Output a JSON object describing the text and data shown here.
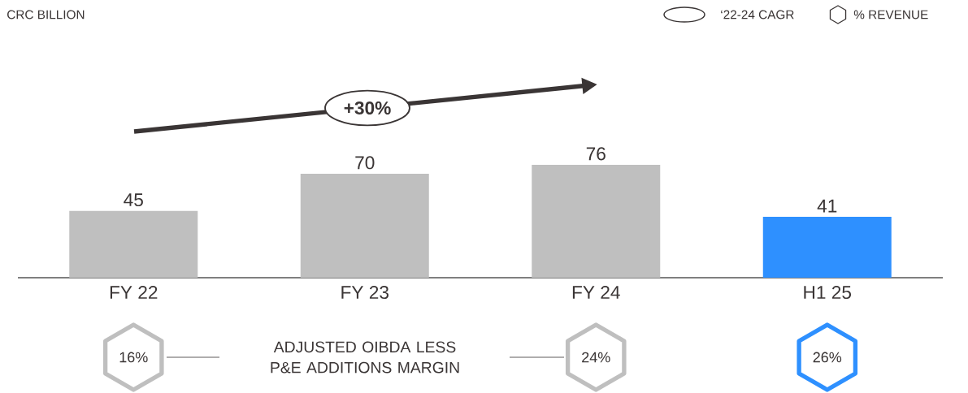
{
  "chart_data": {
    "type": "bar",
    "categories": [
      "FY 22",
      "FY 23",
      "FY 24",
      "H1 25"
    ],
    "values": [
      45,
      70,
      76,
      41
    ],
    "colors": [
      "#bfbfbf",
      "#bfbfbf",
      "#bfbfbf",
      "#2e90ff"
    ],
    "data_labels": true,
    "annotations": [
      "CRC BILLION",
      {
        "text": "‘22-24 CAGR"
      },
      {
        "text": "% REVENUE"
      },
      {
        "text": "+30%"
      },
      {
        "text": "ADJUSTED OIBDA LESS P&E ADDITIONS MARGIN"
      },
      "16%",
      "24%",
      "26%"
    ]
  }
}
